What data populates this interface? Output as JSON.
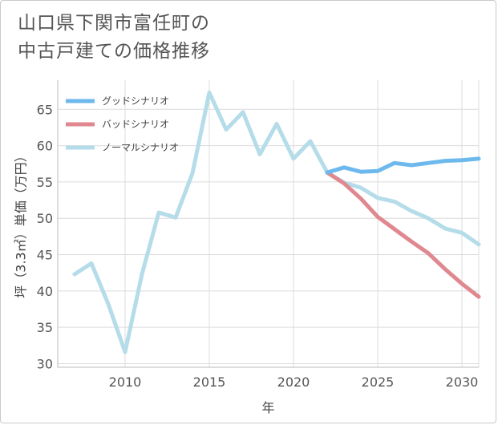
{
  "title_line1": "山口県下関市富任町の",
  "title_line2": "中古戸建ての価格推移",
  "chart_data": {
    "type": "line",
    "xlabel": "年",
    "ylabel": "坪（3.3㎡）単価（万円）",
    "xlim": [
      2006,
      2031
    ],
    "ylim": [
      29.5,
      69
    ],
    "xticks": [
      2010,
      2015,
      2020,
      2025,
      2030
    ],
    "yticks": [
      30,
      35,
      40,
      45,
      50,
      55,
      60,
      65
    ],
    "legend_position": "top-left",
    "series": [
      {
        "name": "グッドシナリオ",
        "color": "#6db9ed",
        "x": [
          2022,
          2023,
          2024,
          2025,
          2026,
          2027,
          2028,
          2029,
          2030,
          2031
        ],
        "values": [
          56.3,
          57.0,
          56.4,
          56.5,
          57.6,
          57.3,
          57.6,
          57.9,
          58.0,
          58.2
        ]
      },
      {
        "name": "バッドシナリオ",
        "color": "#e08890",
        "x": [
          2022,
          2023,
          2024,
          2025,
          2026,
          2027,
          2028,
          2029,
          2030,
          2031
        ],
        "values": [
          56.3,
          54.8,
          52.7,
          50.2,
          48.5,
          46.8,
          45.2,
          43.0,
          41.0,
          39.2
        ]
      },
      {
        "name": "ノーマルシナリオ",
        "color": "#b5dce9",
        "x": [
          2007,
          2008,
          2009,
          2010,
          2011,
          2012,
          2013,
          2014,
          2015,
          2016,
          2017,
          2018,
          2019,
          2020,
          2021,
          2022,
          2023,
          2024,
          2025,
          2026,
          2027,
          2028,
          2029,
          2030,
          2031
        ],
        "values": [
          42.3,
          43.8,
          38.2,
          31.6,
          42.3,
          50.8,
          50.1,
          56.2,
          67.3,
          62.2,
          64.6,
          58.8,
          63.0,
          58.2,
          60.6,
          56.3,
          54.9,
          54.2,
          52.8,
          52.3,
          51.0,
          50.0,
          48.6,
          48.0,
          46.4
        ]
      }
    ]
  }
}
